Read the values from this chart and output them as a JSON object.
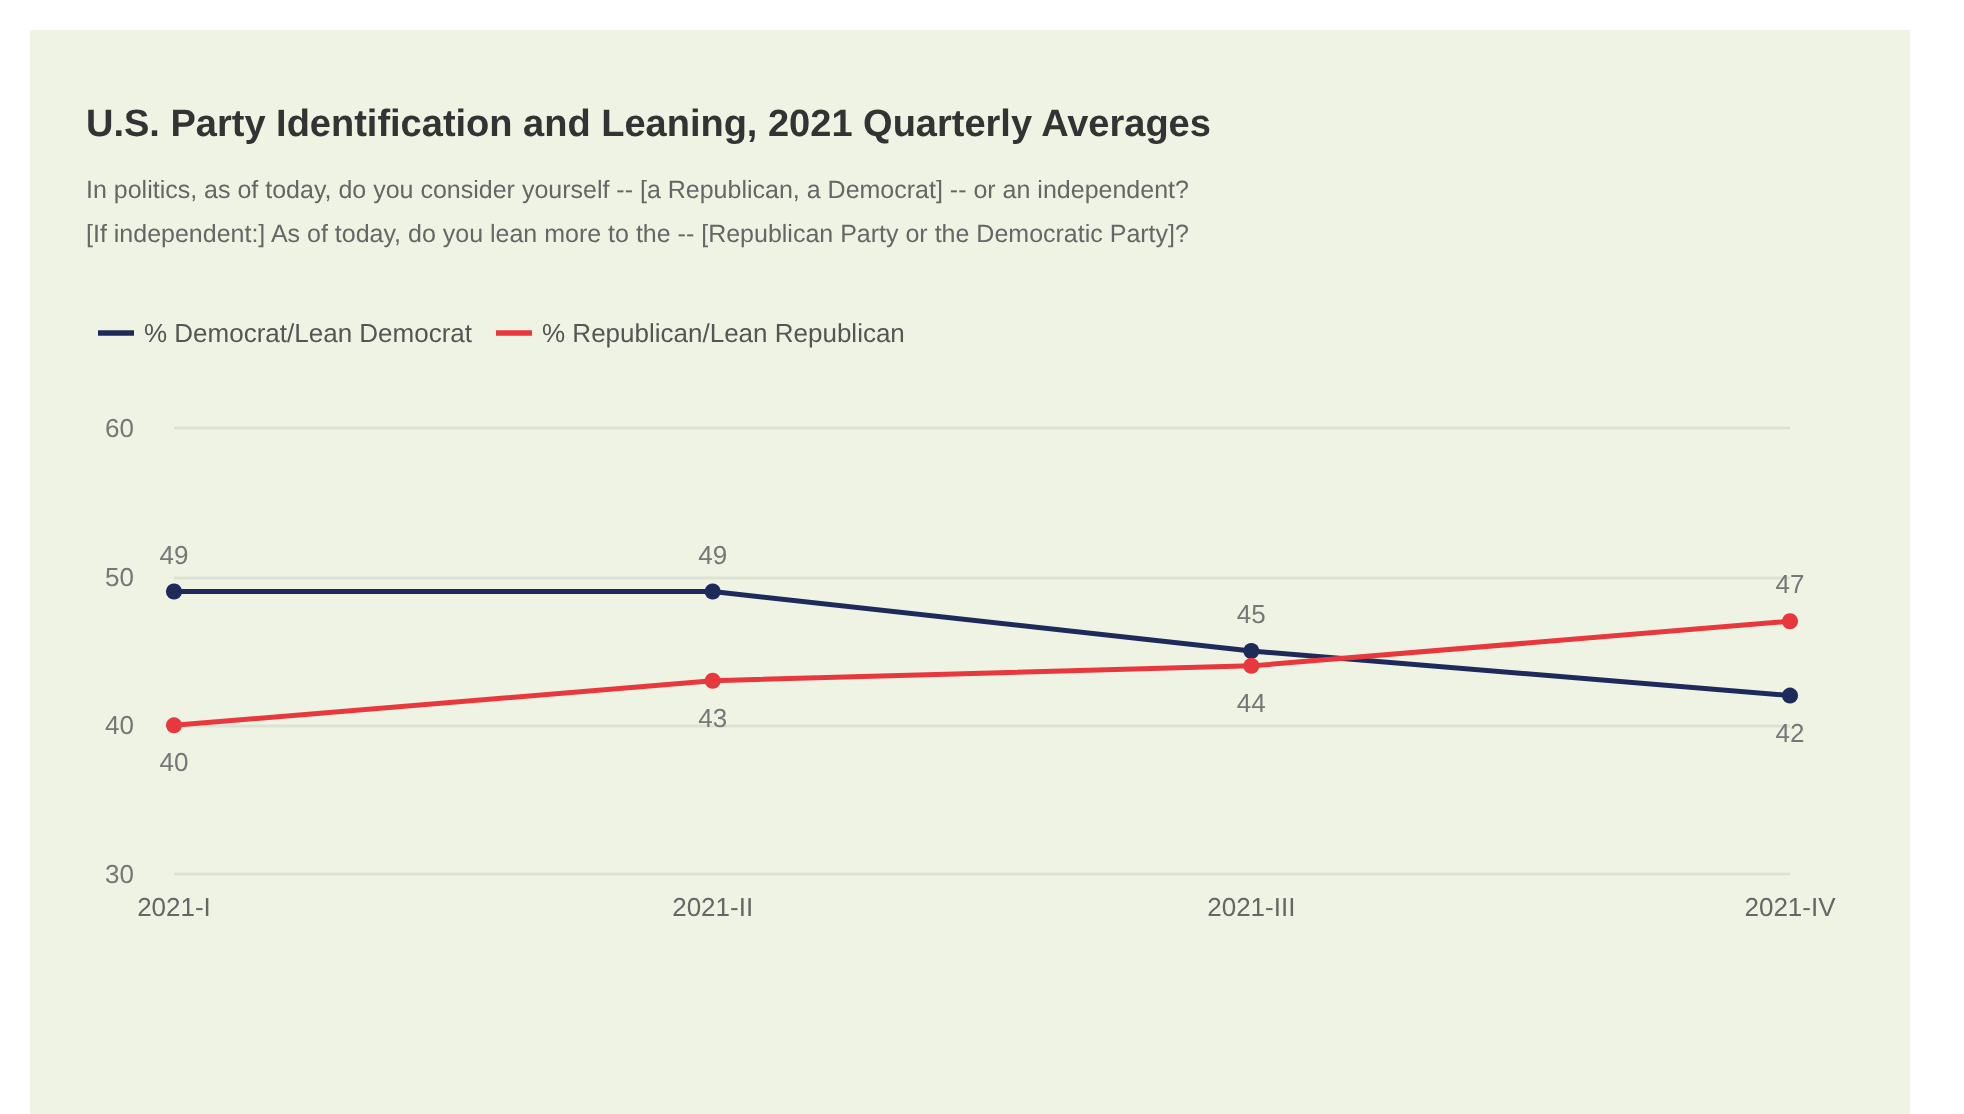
{
  "chart_data": {
    "type": "line",
    "title": "U.S. Party Identification and Leaning, 2021 Quarterly Averages",
    "subtitle": "In politics, as of today, do you consider yourself -- [a Republican, a Democrat] -- or an independent?\n[If independent:] As of today, do you lean more to the -- [Republican Party or the Democratic Party]?",
    "categories": [
      "2021-I",
      "2021-II",
      "2021-III",
      "2021-IV"
    ],
    "series": [
      {
        "name": "% Democrat/Lean Democrat",
        "color": "#1e2b5a",
        "values": [
          49,
          49,
          45,
          42
        ]
      },
      {
        "name": "% Republican/Lean Republican",
        "color": "#e8383d",
        "values": [
          40,
          43,
          44,
          47
        ]
      }
    ],
    "ylim": [
      30,
      60
    ],
    "yticks": [
      30,
      40,
      50,
      60
    ],
    "grid": "y",
    "legend": "top left",
    "marker": "circle",
    "line_style": "solid",
    "data_labels": true
  }
}
